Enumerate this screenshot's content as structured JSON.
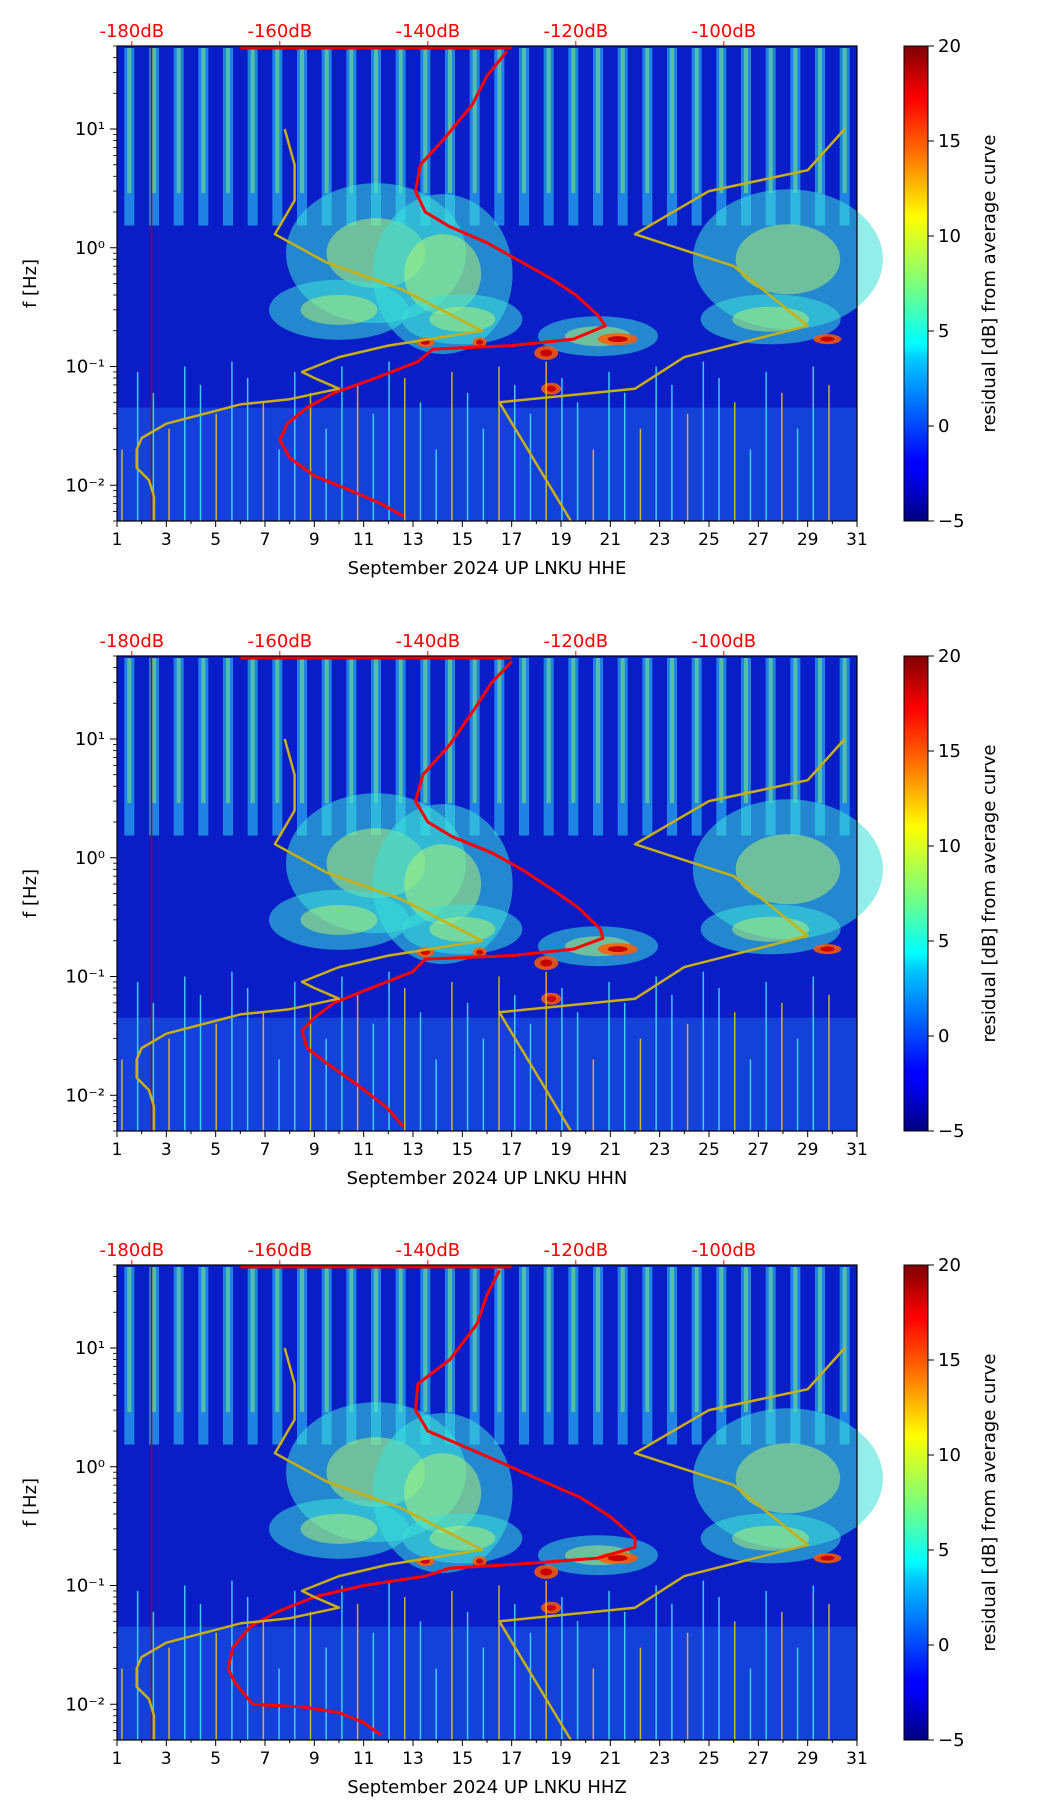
{
  "chart_data": [
    {
      "type": "heatmap",
      "xlabel": "September 2024 UP LNKU  HHE",
      "ylabel": "f [Hz]",
      "x_ticks": [
        "1",
        "3",
        "5",
        "7",
        "9",
        "11",
        "13",
        "15",
        "17",
        "19",
        "21",
        "23",
        "25",
        "27",
        "29",
        "31"
      ],
      "xlim": [
        1,
        31
      ],
      "y_scale": "log",
      "ylim": [
        0.005,
        50
      ],
      "y_tick_labels": [
        "10⁻²",
        "10⁻¹",
        "10⁰",
        "10¹"
      ],
      "top_ticks": [
        "-180dB",
        "-160dB",
        "-140dB",
        "-120dB",
        "-100dB"
      ],
      "top_ticks_color": "#ff0000",
      "colorbar": {
        "label": "residual [dB] from average curve",
        "ticks": [
          "20",
          "15",
          "10",
          "5",
          "0",
          "−5"
        ],
        "range": [
          -5,
          20
        ],
        "colormap": "jet"
      },
      "series": [
        {
          "color": "#ff0000",
          "points": [
            [
              16.8,
              45
            ],
            [
              16,
              28
            ],
            [
              15.4,
              16
            ],
            [
              14.2,
              8
            ],
            [
              13.3,
              5
            ],
            [
              13.1,
              3
            ],
            [
              13.5,
              2
            ],
            [
              14.5,
              1.5
            ],
            [
              16,
              1.1
            ],
            [
              17.2,
              0.8
            ],
            [
              18.6,
              0.55
            ],
            [
              19.6,
              0.4
            ],
            [
              20.5,
              0.27
            ],
            [
              20.8,
              0.22
            ],
            [
              19.5,
              0.17
            ],
            [
              17,
              0.15
            ],
            [
              13.8,
              0.14
            ],
            [
              13.2,
              0.11
            ],
            [
              11.5,
              0.08
            ],
            [
              9.8,
              0.06
            ],
            [
              8.7,
              0.045
            ],
            [
              7.9,
              0.033
            ],
            [
              7.6,
              0.024
            ],
            [
              8,
              0.017
            ],
            [
              9,
              0.012
            ],
            [
              10.5,
              0.009
            ],
            [
              11.7,
              0.007
            ],
            [
              12.6,
              0.0055
            ]
          ]
        },
        {
          "color": "#c8b014",
          "points": [
            [
              7.8,
              10
            ],
            [
              8.2,
              5
            ],
            [
              8.2,
              2.5
            ],
            [
              7.4,
              1.3
            ],
            [
              9.5,
              0.75
            ],
            [
              12.5,
              0.45
            ],
            [
              15.8,
              0.2
            ],
            [
              12,
              0.15
            ],
            [
              10,
              0.12
            ],
            [
              8.5,
              0.09
            ],
            [
              9,
              0.08
            ],
            [
              10,
              0.065
            ],
            [
              8,
              0.053
            ],
            [
              6,
              0.048
            ],
            [
              3,
              0.033
            ],
            [
              2,
              0.025
            ],
            [
              1.8,
              0.02
            ],
            [
              1.8,
              0.014
            ],
            [
              2.3,
              0.011
            ],
            [
              2.5,
              0.008
            ],
            [
              2.5,
              0.005
            ]
          ]
        },
        {
          "color": "#c8b014",
          "points": [
            [
              30.5,
              10
            ],
            [
              29,
              4.5
            ],
            [
              25,
              3
            ],
            [
              22,
              1.3
            ],
            [
              26,
              0.7
            ],
            [
              29,
              0.22
            ],
            [
              24,
              0.12
            ],
            [
              22,
              0.065
            ],
            [
              16.5,
              0.05
            ],
            [
              19.4,
              0.005
            ]
          ]
        }
      ]
    },
    {
      "type": "heatmap",
      "xlabel": "September 2024 UP LNKU  HHN",
      "ylabel": "f [Hz]",
      "x_ticks": [
        "1",
        "3",
        "5",
        "7",
        "9",
        "11",
        "13",
        "15",
        "17",
        "19",
        "21",
        "23",
        "25",
        "27",
        "29",
        "31"
      ],
      "xlim": [
        1,
        31
      ],
      "y_scale": "log",
      "ylim": [
        0.005,
        50
      ],
      "y_tick_labels": [
        "10⁻²",
        "10⁻¹",
        "10⁰",
        "10¹"
      ],
      "top_ticks": [
        "-180dB",
        "-160dB",
        "-140dB",
        "-120dB",
        "-100dB"
      ],
      "top_ticks_color": "#ff0000",
      "colorbar": {
        "label": "residual [dB] from average curve",
        "ticks": [
          "20",
          "15",
          "10",
          "5",
          "0",
          "−5"
        ],
        "range": [
          -5,
          20
        ],
        "colormap": "jet"
      },
      "series": [
        {
          "color": "#ff0000",
          "points": [
            [
              17,
              45
            ],
            [
              16.2,
              30
            ],
            [
              15.5,
              18
            ],
            [
              14.5,
              9
            ],
            [
              13.4,
              5
            ],
            [
              13.1,
              3
            ],
            [
              13.6,
              2
            ],
            [
              14.6,
              1.5
            ],
            [
              16.2,
              1.1
            ],
            [
              17.4,
              0.8
            ],
            [
              18.6,
              0.55
            ],
            [
              19.7,
              0.38
            ],
            [
              20.6,
              0.25
            ],
            [
              20.7,
              0.21
            ],
            [
              19.5,
              0.17
            ],
            [
              17,
              0.15
            ],
            [
              13.5,
              0.14
            ],
            [
              13,
              0.11
            ],
            [
              11.3,
              0.08
            ],
            [
              9.8,
              0.06
            ],
            [
              9,
              0.045
            ],
            [
              8.5,
              0.035
            ],
            [
              8.7,
              0.025
            ],
            [
              9.6,
              0.018
            ],
            [
              10.8,
              0.012
            ],
            [
              11.9,
              0.008
            ],
            [
              12.6,
              0.0055
            ]
          ]
        },
        {
          "color": "#c8b014",
          "points": [
            [
              7.8,
              10
            ],
            [
              8.2,
              5
            ],
            [
              8.2,
              2.5
            ],
            [
              7.4,
              1.3
            ],
            [
              9.5,
              0.75
            ],
            [
              12.5,
              0.45
            ],
            [
              15.8,
              0.2
            ],
            [
              12,
              0.15
            ],
            [
              10,
              0.12
            ],
            [
              8.5,
              0.09
            ],
            [
              9,
              0.08
            ],
            [
              10,
              0.065
            ],
            [
              8,
              0.053
            ],
            [
              6,
              0.048
            ],
            [
              3,
              0.033
            ],
            [
              2,
              0.025
            ],
            [
              1.8,
              0.02
            ],
            [
              1.8,
              0.014
            ],
            [
              2.3,
              0.011
            ],
            [
              2.5,
              0.008
            ],
            [
              2.5,
              0.005
            ]
          ]
        },
        {
          "color": "#c8b014",
          "points": [
            [
              30.5,
              10
            ],
            [
              29,
              4.5
            ],
            [
              25,
              3
            ],
            [
              22,
              1.3
            ],
            [
              26,
              0.7
            ],
            [
              29,
              0.22
            ],
            [
              24,
              0.12
            ],
            [
              22,
              0.065
            ],
            [
              16.5,
              0.05
            ],
            [
              19.4,
              0.005
            ]
          ]
        }
      ]
    },
    {
      "type": "heatmap",
      "xlabel": "September 2024 UP LNKU  HHZ",
      "ylabel": "f [Hz]",
      "x_ticks": [
        "1",
        "3",
        "5",
        "7",
        "9",
        "11",
        "13",
        "15",
        "17",
        "19",
        "21",
        "23",
        "25",
        "27",
        "29",
        "31"
      ],
      "xlim": [
        1,
        31
      ],
      "y_scale": "log",
      "ylim": [
        0.005,
        50
      ],
      "y_tick_labels": [
        "10⁻²",
        "10⁻¹",
        "10⁰",
        "10¹"
      ],
      "top_ticks": [
        "-180dB",
        "-160dB",
        "-140dB",
        "-120dB",
        "-100dB"
      ],
      "top_ticks_color": "#ff0000",
      "colorbar": {
        "label": "residual [dB] from average curve",
        "ticks": [
          "20",
          "15",
          "10",
          "5",
          "0",
          "−5"
        ],
        "range": [
          -5,
          20
        ],
        "colormap": "jet"
      },
      "series": [
        {
          "color": "#ff0000",
          "points": [
            [
              16.5,
              45
            ],
            [
              16,
              28
            ],
            [
              15.6,
              16
            ],
            [
              14.5,
              8
            ],
            [
              13.2,
              5
            ],
            [
              13.1,
              3
            ],
            [
              13.6,
              2
            ],
            [
              15,
              1.5
            ],
            [
              16.5,
              1.1
            ],
            [
              18,
              0.8
            ],
            [
              19.8,
              0.55
            ],
            [
              21,
              0.38
            ],
            [
              22,
              0.25
            ],
            [
              22,
              0.21
            ],
            [
              20.5,
              0.17
            ],
            [
              17,
              0.15
            ],
            [
              14.5,
              0.14
            ],
            [
              13.5,
              0.12
            ],
            [
              11,
              0.1
            ],
            [
              9,
              0.08
            ],
            [
              7.5,
              0.06
            ],
            [
              6.4,
              0.045
            ],
            [
              5.7,
              0.03
            ],
            [
              5.5,
              0.02
            ],
            [
              5.8,
              0.015
            ],
            [
              6.5,
              0.01
            ],
            [
              8.5,
              0.0095
            ],
            [
              10,
              0.0085
            ],
            [
              11,
              0.007
            ],
            [
              11.7,
              0.0055
            ]
          ]
        },
        {
          "color": "#c8b014",
          "points": [
            [
              7.8,
              10
            ],
            [
              8.2,
              5
            ],
            [
              8.2,
              2.5
            ],
            [
              7.4,
              1.3
            ],
            [
              9.5,
              0.75
            ],
            [
              12.5,
              0.45
            ],
            [
              15.8,
              0.2
            ],
            [
              12,
              0.15
            ],
            [
              10,
              0.12
            ],
            [
              8.5,
              0.09
            ],
            [
              9,
              0.08
            ],
            [
              10,
              0.065
            ],
            [
              8,
              0.053
            ],
            [
              6,
              0.048
            ],
            [
              3,
              0.033
            ],
            [
              2,
              0.025
            ],
            [
              1.8,
              0.02
            ],
            [
              1.8,
              0.014
            ],
            [
              2.3,
              0.011
            ],
            [
              2.5,
              0.008
            ],
            [
              2.5,
              0.005
            ]
          ]
        },
        {
          "color": "#c8b014",
          "points": [
            [
              30.5,
              10
            ],
            [
              29,
              4.5
            ],
            [
              25,
              3
            ],
            [
              22,
              1.3
            ],
            [
              26,
              0.7
            ],
            [
              29,
              0.22
            ],
            [
              24,
              0.12
            ],
            [
              22,
              0.065
            ],
            [
              16.5,
              0.05
            ],
            [
              19.4,
              0.005
            ]
          ]
        }
      ]
    }
  ]
}
